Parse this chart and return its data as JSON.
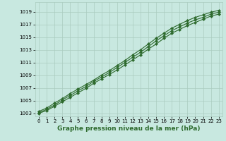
{
  "xlabel": "Graphe pression niveau de la mer (hPa)",
  "hours": [
    0,
    1,
    2,
    3,
    4,
    5,
    6,
    7,
    8,
    9,
    10,
    11,
    12,
    13,
    14,
    15,
    16,
    17,
    18,
    19,
    20,
    21,
    22,
    23
  ],
  "line1": [
    1003.3,
    1003.8,
    1004.6,
    1005.3,
    1006.1,
    1006.8,
    1007.5,
    1008.2,
    1009.0,
    1009.7,
    1010.5,
    1011.3,
    1012.2,
    1013.0,
    1013.9,
    1014.8,
    1015.6,
    1016.4,
    1017.0,
    1017.6,
    1018.1,
    1018.5,
    1018.9,
    1019.2
  ],
  "line2": [
    1003.1,
    1003.6,
    1004.3,
    1005.1,
    1005.8,
    1006.5,
    1007.2,
    1008.0,
    1008.7,
    1009.4,
    1010.2,
    1011.0,
    1011.8,
    1012.6,
    1013.5,
    1014.4,
    1015.2,
    1016.0,
    1016.6,
    1017.2,
    1017.7,
    1018.1,
    1018.6,
    1018.9
  ],
  "line3": [
    1003.0,
    1003.4,
    1004.1,
    1004.8,
    1005.5,
    1006.2,
    1006.9,
    1007.7,
    1008.4,
    1009.1,
    1009.8,
    1010.6,
    1011.4,
    1012.2,
    1013.1,
    1013.9,
    1014.8,
    1015.6,
    1016.2,
    1016.8,
    1017.3,
    1017.8,
    1018.3,
    1018.6
  ],
  "line_color": "#2d6a2d",
  "bg_color": "#c8e8e0",
  "grid_color": "#aaccc0",
  "ylim": [
    1002.5,
    1020.5
  ],
  "yticks": [
    1003,
    1005,
    1007,
    1009,
    1011,
    1013,
    1015,
    1017,
    1019
  ],
  "xlim": [
    -0.5,
    23.5
  ],
  "xticks": [
    0,
    1,
    2,
    3,
    4,
    5,
    6,
    7,
    8,
    9,
    10,
    11,
    12,
    13,
    14,
    15,
    16,
    17,
    18,
    19,
    20,
    21,
    22,
    23
  ],
  "marker": "D",
  "markersize": 2.2,
  "linewidth": 0.8,
  "tick_fontsize": 5.0,
  "xlabel_fontsize": 6.5
}
